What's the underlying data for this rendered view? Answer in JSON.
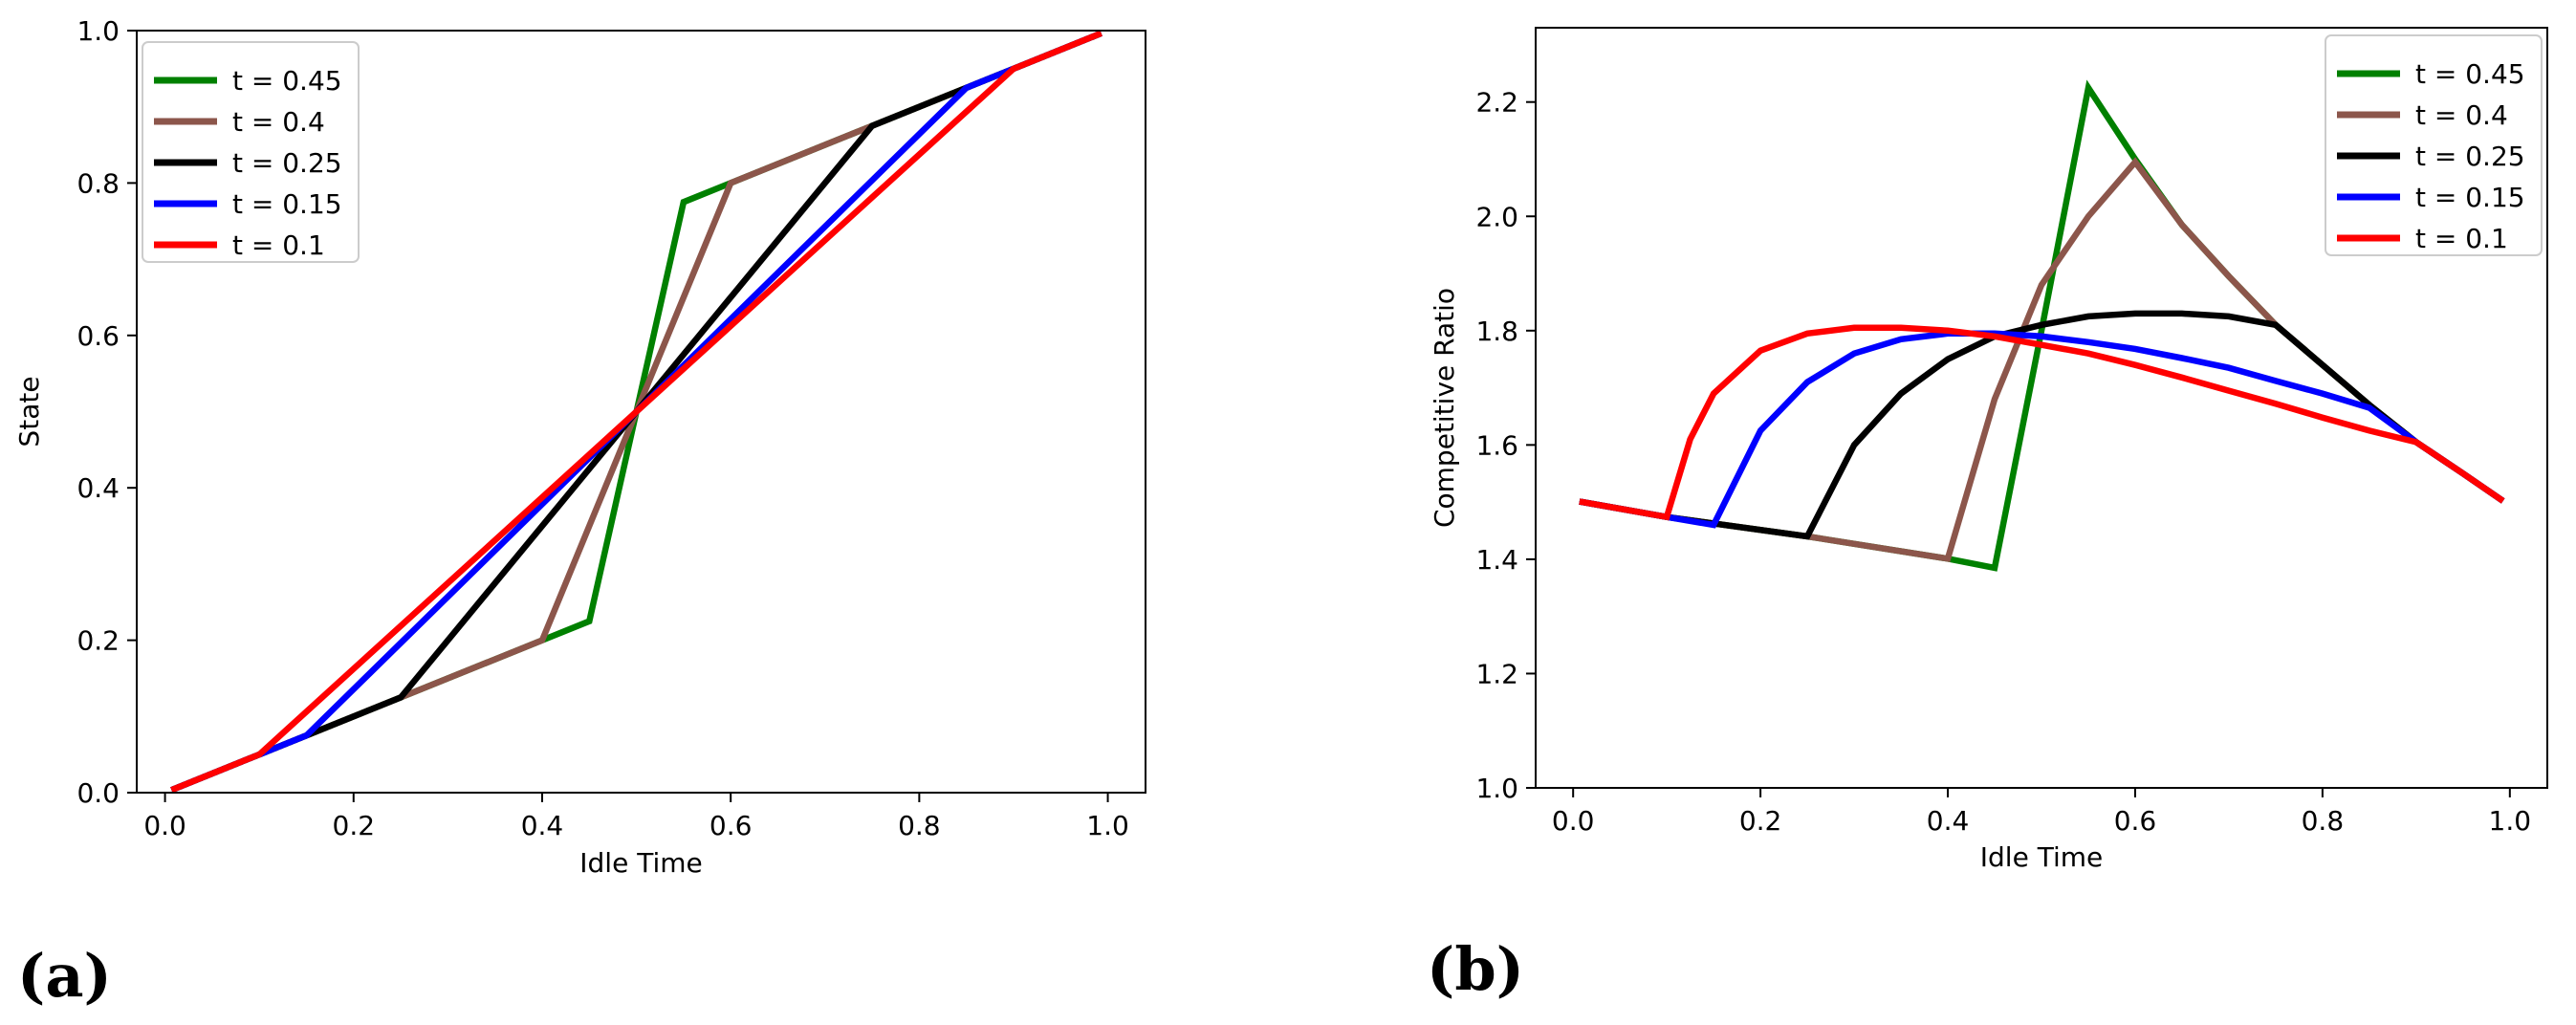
{
  "chart_data": [
    {
      "id": "a",
      "panel_label": "(a)",
      "type": "line",
      "title": "",
      "xlabel": "Idle Time",
      "ylabel": "State",
      "xlim": [
        -0.03,
        1.04
      ],
      "ylim": [
        0.0,
        1.0
      ],
      "xticks": [
        0.0,
        0.2,
        0.4,
        0.6,
        0.8,
        1.0
      ],
      "xtick_labels": [
        "0.0",
        "0.2",
        "0.4",
        "0.6",
        "0.8",
        "1.0"
      ],
      "yticks": [
        0.0,
        0.2,
        0.4,
        0.6,
        0.8,
        1.0
      ],
      "ytick_labels": [
        "0.0",
        "0.2",
        "0.4",
        "0.6",
        "0.8",
        "1.0"
      ],
      "grid": false,
      "legend_position": "top-left",
      "series": [
        {
          "name": "t = 0.45",
          "color": "#008000",
          "x": [
            0.01,
            0.1,
            0.25,
            0.4,
            0.45,
            0.55,
            0.6,
            0.75,
            0.9,
            0.99
          ],
          "y": [
            0.005,
            0.05,
            0.125,
            0.2,
            0.225,
            0.775,
            0.8,
            0.875,
            0.95,
            0.995
          ]
        },
        {
          "name": "t = 0.4",
          "color": "#8c564b",
          "x": [
            0.01,
            0.1,
            0.25,
            0.4,
            0.6,
            0.75,
            0.9,
            0.99
          ],
          "y": [
            0.005,
            0.05,
            0.125,
            0.2,
            0.8,
            0.875,
            0.95,
            0.995
          ]
        },
        {
          "name": "t = 0.25",
          "color": "#000000",
          "x": [
            0.01,
            0.1,
            0.25,
            0.75,
            0.9,
            0.99
          ],
          "y": [
            0.005,
            0.05,
            0.125,
            0.875,
            0.95,
            0.995
          ]
        },
        {
          "name": "t = 0.15",
          "color": "#0000ff",
          "x": [
            0.01,
            0.1,
            0.15,
            0.85,
            0.9,
            0.99
          ],
          "y": [
            0.005,
            0.05,
            0.075,
            0.925,
            0.95,
            0.995
          ]
        },
        {
          "name": "t = 0.1",
          "color": "#ff0000",
          "x": [
            0.01,
            0.1,
            0.9,
            0.99
          ],
          "y": [
            0.005,
            0.05,
            0.95,
            0.995
          ]
        }
      ]
    },
    {
      "id": "b",
      "panel_label": "(b)",
      "type": "line",
      "title": "",
      "xlabel": "Idle Time",
      "ylabel": "Competitive Ratio",
      "xlim": [
        -0.04,
        1.04
      ],
      "ylim": [
        1.0,
        2.33
      ],
      "xticks": [
        0.0,
        0.2,
        0.4,
        0.6,
        0.8,
        1.0
      ],
      "xtick_labels": [
        "0.0",
        "0.2",
        "0.4",
        "0.6",
        "0.8",
        "1.0"
      ],
      "yticks": [
        1.0,
        1.2,
        1.4,
        1.6,
        1.8,
        2.0,
        2.2
      ],
      "ytick_labels": [
        "1.0",
        "1.2",
        "1.4",
        "1.6",
        "1.8",
        "2.0",
        "2.2"
      ],
      "grid": false,
      "legend_position": "top-right",
      "series": [
        {
          "name": "t = 0.45",
          "color": "#008000",
          "x": [
            0.01,
            0.1,
            0.25,
            0.4,
            0.45,
            0.5,
            0.55,
            0.6,
            0.65,
            0.7,
            0.75,
            0.8,
            0.85,
            0.9,
            0.95,
            0.99
          ],
          "y": [
            1.5,
            1.474,
            1.44,
            1.401,
            1.385,
            1.8,
            2.225,
            2.1,
            1.985,
            1.895,
            1.81,
            1.74,
            1.67,
            1.605,
            1.55,
            1.505
          ]
        },
        {
          "name": "t = 0.4",
          "color": "#8c564b",
          "x": [
            0.01,
            0.1,
            0.25,
            0.4,
            0.45,
            0.5,
            0.55,
            0.6,
            0.65,
            0.7,
            0.75,
            0.8,
            0.85,
            0.9,
            0.95,
            0.99
          ],
          "y": [
            1.5,
            1.474,
            1.44,
            1.401,
            1.68,
            1.88,
            2.0,
            2.095,
            1.985,
            1.895,
            1.81,
            1.74,
            1.67,
            1.605,
            1.55,
            1.505
          ]
        },
        {
          "name": "t = 0.25",
          "color": "#000000",
          "x": [
            0.01,
            0.1,
            0.25,
            0.3,
            0.35,
            0.4,
            0.45,
            0.5,
            0.55,
            0.6,
            0.65,
            0.7,
            0.75,
            0.8,
            0.85,
            0.9,
            0.95,
            0.99
          ],
          "y": [
            1.5,
            1.474,
            1.44,
            1.6,
            1.69,
            1.75,
            1.79,
            1.81,
            1.825,
            1.83,
            1.83,
            1.825,
            1.81,
            1.74,
            1.67,
            1.605,
            1.55,
            1.505
          ]
        },
        {
          "name": "t = 0.15",
          "color": "#0000ff",
          "x": [
            0.01,
            0.1,
            0.15,
            0.2,
            0.25,
            0.3,
            0.35,
            0.4,
            0.45,
            0.5,
            0.55,
            0.6,
            0.65,
            0.7,
            0.75,
            0.8,
            0.85,
            0.9,
            0.95,
            0.99
          ],
          "y": [
            1.5,
            1.474,
            1.46,
            1.625,
            1.71,
            1.76,
            1.785,
            1.795,
            1.795,
            1.79,
            1.78,
            1.768,
            1.752,
            1.735,
            1.712,
            1.69,
            1.665,
            1.605,
            1.55,
            1.505
          ]
        },
        {
          "name": "t = 0.1",
          "color": "#ff0000",
          "x": [
            0.01,
            0.1,
            0.125,
            0.15,
            0.2,
            0.25,
            0.3,
            0.35,
            0.4,
            0.45,
            0.5,
            0.55,
            0.6,
            0.65,
            0.7,
            0.75,
            0.8,
            0.85,
            0.9,
            0.95,
            0.99
          ],
          "y": [
            1.5,
            1.474,
            1.61,
            1.69,
            1.765,
            1.795,
            1.805,
            1.805,
            1.8,
            1.79,
            1.775,
            1.76,
            1.74,
            1.718,
            1.695,
            1.672,
            1.648,
            1.625,
            1.605,
            1.55,
            1.505
          ]
        }
      ]
    }
  ]
}
